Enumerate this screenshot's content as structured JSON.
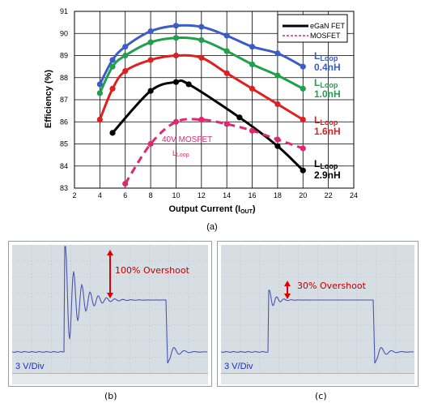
{
  "chart_data": [
    {
      "type": "line",
      "title": "",
      "xlabel": "Output Current (I",
      "xlabel_sub": "OUT",
      "xlabel_tail": ")",
      "ylabel": "Efficiency (%)",
      "xlim": [
        2,
        24
      ],
      "ylim": [
        83,
        91
      ],
      "xticks": [
        "2",
        "4",
        "6",
        "8",
        "10",
        "12",
        "14",
        "16",
        "18",
        "20",
        "22",
        "24"
      ],
      "yticks": [
        "83",
        "84",
        "85",
        "86",
        "87",
        "88",
        "89",
        "90",
        "91"
      ],
      "grid": true,
      "legend": {
        "placement": "top-right",
        "entries": [
          {
            "label": "eGaN FET",
            "style": "solid",
            "color": "#000000"
          },
          {
            "label": "MOSFET",
            "style": "dashed",
            "color": "#e0286f"
          }
        ]
      },
      "series": [
        {
          "color": "#3c5cc7",
          "style": "solid",
          "label_main": "L",
          "label_sub": "Loop",
          "label_value": "0.4nH",
          "x": [
            4,
            5,
            6,
            8,
            10,
            12,
            14,
            16,
            18,
            20
          ],
          "y": [
            87.7,
            88.8,
            89.4,
            90.1,
            90.35,
            90.3,
            89.9,
            89.4,
            89.1,
            88.5
          ]
        },
        {
          "color": "#1fa04a",
          "style": "solid",
          "label_main": "L",
          "label_sub": "Loop",
          "label_value": "1.0nH",
          "x": [
            4,
            5,
            6,
            8,
            10,
            12,
            14,
            16,
            18,
            20
          ],
          "y": [
            87.3,
            88.5,
            89.0,
            89.6,
            89.8,
            89.7,
            89.2,
            88.6,
            88.1,
            87.5
          ]
        },
        {
          "color": "#e02020",
          "style": "solid",
          "label_main": "L",
          "label_sub": "Loop",
          "label_value": "1.6nH",
          "x": [
            4,
            5,
            6,
            8,
            10,
            12,
            14,
            16,
            18,
            20
          ],
          "y": [
            86.1,
            87.5,
            88.3,
            88.8,
            89.0,
            88.9,
            88.2,
            87.5,
            86.8,
            86.1
          ]
        },
        {
          "color": "#000000",
          "style": "solid",
          "label_main": "L",
          "label_sub": "Loop",
          "label_value": "2.9nH",
          "x": [
            5,
            8,
            10,
            11,
            15,
            18,
            20
          ],
          "y": [
            85.5,
            87.4,
            87.8,
            87.7,
            86.2,
            84.9,
            83.8
          ]
        },
        {
          "color": "#e0286f",
          "style": "dashed",
          "label_main": "40V MOSFET",
          "label_sub": "Loop",
          "label_value": "",
          "x": [
            6,
            8,
            10,
            12,
            14,
            16,
            18,
            20
          ],
          "y": [
            83.2,
            85.0,
            86.0,
            86.1,
            85.9,
            85.6,
            85.2,
            84.8
          ]
        }
      ],
      "caption": "(a)"
    },
    {
      "type": "line",
      "title": "",
      "annotation": "100% Overshoot",
      "scale": "3 V/Div",
      "caption": "(b)"
    },
    {
      "type": "line",
      "title": "",
      "annotation": "30% Overshoot",
      "scale": "3 V/Div",
      "caption": "(c)"
    }
  ]
}
